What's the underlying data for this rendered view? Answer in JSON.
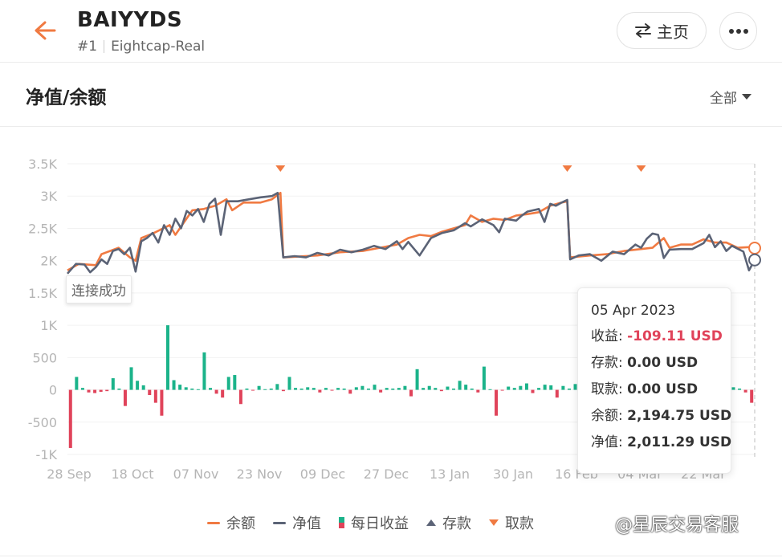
{
  "header": {
    "title": "BAIYYDS",
    "rank": "#1",
    "server": "Eightcap-Real",
    "home_label": "主页"
  },
  "section": {
    "title": "净值/余额",
    "range_label": "全部"
  },
  "toast": "连接成功",
  "tooltip": {
    "date": "05 Apr 2023",
    "profit_label": "收益:",
    "profit_value": "-109.11 USD",
    "deposit_label": "存款:",
    "deposit_value": "0.00 USD",
    "withdraw_label": "取款:",
    "withdraw_value": "0.00 USD",
    "balance_label": "余额:",
    "balance_value": "2,194.75 USD",
    "equity_label": "净值:",
    "equity_value": "2,011.29 USD"
  },
  "legend": {
    "balance": "余额",
    "equity": "净值",
    "daily_profit": "每日收益",
    "deposit": "存款",
    "withdraw": "取款"
  },
  "watermark": "@星辰交易客服",
  "colors": {
    "balance": "#f07a42",
    "equity": "#5b6376",
    "profit_pos": "#1bb38a",
    "profit_neg": "#e0435a",
    "accent": "#f07a42"
  },
  "chart_data": {
    "type": "line",
    "x_labels": [
      "28 Sep",
      "18 Oct",
      "07 Nov",
      "23 Nov",
      "09 Dec",
      "27 Dec",
      "13 Jan",
      "30 Jan",
      "16 Feb",
      "04 Mar",
      "22 Mar"
    ],
    "y_ticks": [
      "3.5K",
      "3K",
      "2.5K",
      "2K",
      "1.5K",
      "1K",
      "500",
      "0",
      "-500",
      "-1K"
    ],
    "ylim": [
      -1000,
      3500
    ],
    "series": [
      {
        "name": "余额",
        "points": [
          [
            0,
            1850
          ],
          [
            4,
            1950
          ],
          [
            10,
            1930
          ],
          [
            12,
            2100
          ],
          [
            18,
            2200
          ],
          [
            22,
            2050
          ],
          [
            24,
            2000
          ],
          [
            26,
            2350
          ],
          [
            30,
            2420
          ],
          [
            36,
            2550
          ],
          [
            38,
            2400
          ],
          [
            44,
            2780
          ],
          [
            48,
            2800
          ],
          [
            52,
            2850
          ],
          [
            56,
            2950
          ],
          [
            58,
            2780
          ],
          [
            62,
            2900
          ],
          [
            68,
            2900
          ],
          [
            72,
            2950
          ],
          [
            75,
            3050
          ],
          [
            76,
            2050
          ],
          [
            80,
            2060
          ],
          [
            88,
            2080
          ],
          [
            96,
            2130
          ],
          [
            104,
            2150
          ],
          [
            110,
            2200
          ],
          [
            116,
            2250
          ],
          [
            120,
            2350
          ],
          [
            124,
            2400
          ],
          [
            128,
            2380
          ],
          [
            132,
            2450
          ],
          [
            136,
            2500
          ],
          [
            140,
            2550
          ],
          [
            142,
            2700
          ],
          [
            146,
            2600
          ],
          [
            150,
            2650
          ],
          [
            154,
            2630
          ],
          [
            158,
            2700
          ],
          [
            162,
            2720
          ],
          [
            166,
            2750
          ],
          [
            170,
            2850
          ],
          [
            174,
            2900
          ],
          [
            176,
            2920
          ],
          [
            177,
            2050
          ],
          [
            184,
            2080
          ],
          [
            190,
            2100
          ],
          [
            196,
            2150
          ],
          [
            202,
            2180
          ],
          [
            206,
            2200
          ],
          [
            210,
            2350
          ],
          [
            212,
            2200
          ],
          [
            216,
            2250
          ],
          [
            220,
            2250
          ],
          [
            224,
            2330
          ],
          [
            228,
            2280
          ],
          [
            232,
            2280
          ],
          [
            236,
            2200
          ],
          [
            240,
            2210
          ],
          [
            242,
            2194.75
          ]
        ]
      },
      {
        "name": "净值",
        "points": [
          [
            0,
            1800
          ],
          [
            3,
            1950
          ],
          [
            6,
            1940
          ],
          [
            8,
            1820
          ],
          [
            10,
            1900
          ],
          [
            12,
            2020
          ],
          [
            14,
            1950
          ],
          [
            16,
            2150
          ],
          [
            18,
            2180
          ],
          [
            20,
            2100
          ],
          [
            22,
            2200
          ],
          [
            24,
            1830
          ],
          [
            26,
            2300
          ],
          [
            28,
            2350
          ],
          [
            30,
            2430
          ],
          [
            32,
            2280
          ],
          [
            34,
            2550
          ],
          [
            36,
            2400
          ],
          [
            38,
            2650
          ],
          [
            40,
            2500
          ],
          [
            42,
            2770
          ],
          [
            44,
            2700
          ],
          [
            46,
            2800
          ],
          [
            48,
            2600
          ],
          [
            50,
            2880
          ],
          [
            52,
            2960
          ],
          [
            54,
            2400
          ],
          [
            56,
            2920
          ],
          [
            60,
            2920
          ],
          [
            64,
            2950
          ],
          [
            68,
            2980
          ],
          [
            72,
            3000
          ],
          [
            74,
            3050
          ],
          [
            76,
            2050
          ],
          [
            80,
            2070
          ],
          [
            84,
            2050
          ],
          [
            88,
            2120
          ],
          [
            92,
            2080
          ],
          [
            96,
            2170
          ],
          [
            100,
            2130
          ],
          [
            104,
            2170
          ],
          [
            108,
            2230
          ],
          [
            112,
            2180
          ],
          [
            116,
            2300
          ],
          [
            118,
            2180
          ],
          [
            120,
            2290
          ],
          [
            124,
            2080
          ],
          [
            128,
            2350
          ],
          [
            132,
            2430
          ],
          [
            136,
            2470
          ],
          [
            140,
            2580
          ],
          [
            142,
            2530
          ],
          [
            146,
            2640
          ],
          [
            150,
            2550
          ],
          [
            152,
            2440
          ],
          [
            154,
            2650
          ],
          [
            158,
            2620
          ],
          [
            160,
            2700
          ],
          [
            162,
            2760
          ],
          [
            166,
            2800
          ],
          [
            168,
            2600
          ],
          [
            170,
            2880
          ],
          [
            172,
            2850
          ],
          [
            174,
            2900
          ],
          [
            176,
            2940
          ],
          [
            177,
            2020
          ],
          [
            180,
            2080
          ],
          [
            184,
            2100
          ],
          [
            188,
            2000
          ],
          [
            192,
            2140
          ],
          [
            196,
            2100
          ],
          [
            200,
            2250
          ],
          [
            202,
            2200
          ],
          [
            204,
            2340
          ],
          [
            206,
            2420
          ],
          [
            208,
            2400
          ],
          [
            210,
            2040
          ],
          [
            212,
            2170
          ],
          [
            216,
            2180
          ],
          [
            220,
            2180
          ],
          [
            224,
            2270
          ],
          [
            226,
            2400
          ],
          [
            228,
            2210
          ],
          [
            230,
            2300
          ],
          [
            232,
            2150
          ],
          [
            234,
            2230
          ],
          [
            238,
            2140
          ],
          [
            240,
            1850
          ],
          [
            242,
            2011.29
          ]
        ]
      }
    ],
    "daily_profit_series": {
      "name": "每日收益",
      "values": [
        -900,
        200,
        30,
        -40,
        -50,
        -30,
        -20,
        180,
        20,
        -250,
        350,
        140,
        70,
        -80,
        -200,
        -400,
        1000,
        150,
        80,
        40,
        20,
        10,
        580,
        30,
        -60,
        -120,
        200,
        230,
        -220,
        20,
        -10,
        60,
        10,
        20,
        90,
        -20,
        200,
        30,
        20,
        40,
        30,
        -40,
        30,
        -10,
        30,
        20,
        -60,
        40,
        60,
        20,
        80,
        -40,
        30,
        20,
        30,
        60,
        -100,
        320,
        30,
        60,
        30,
        -20,
        50,
        20,
        140,
        80,
        20,
        -40,
        360,
        10,
        -400,
        -10,
        50,
        30,
        60,
        100,
        -50,
        30,
        80,
        70,
        -120,
        60,
        20,
        90,
        -60,
        320,
        30,
        70,
        30,
        40,
        20,
        10,
        20,
        -10,
        10,
        60,
        30,
        20,
        10,
        -20,
        20,
        -60,
        10,
        20,
        30,
        60,
        -40,
        80,
        -20,
        40,
        20,
        -40,
        -200
      ]
    },
    "deposit_markers": [],
    "withdraw_markers": [
      75,
      176,
      202
    ],
    "selected_index": 242
  }
}
